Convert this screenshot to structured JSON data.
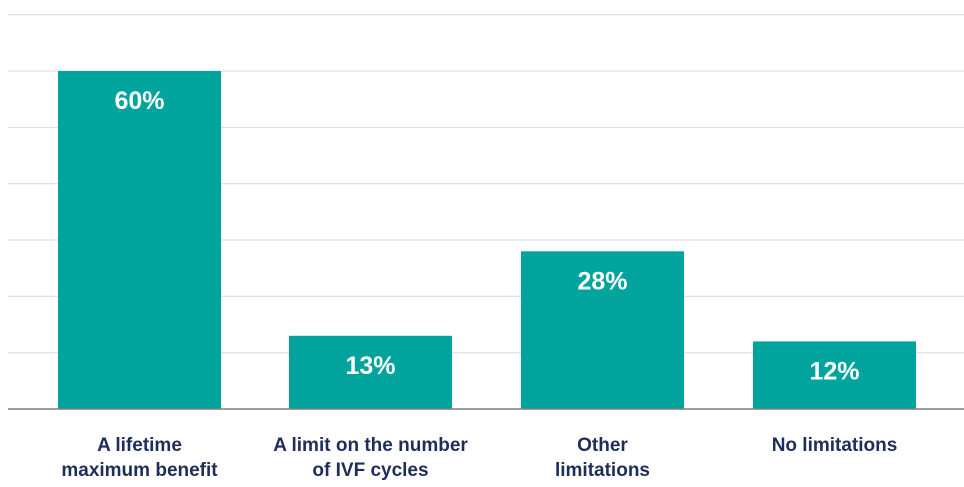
{
  "chart_data": {
    "type": "bar",
    "categories": [
      [
        "A lifetime",
        "maximum benefit"
      ],
      [
        "A limit on the number",
        "of IVF cycles"
      ],
      [
        "Other",
        "limitations"
      ],
      [
        "No limitations"
      ]
    ],
    "values": [
      60,
      13,
      28,
      12
    ],
    "value_labels": [
      "60%",
      "13%",
      "28%",
      "12%"
    ],
    "title": "",
    "xlabel": "",
    "ylabel": "",
    "ylim": [
      0,
      70
    ],
    "grid": true,
    "legend": "none",
    "colors": {
      "bar": "#00a49c",
      "label_text": "#ffffff",
      "category_text": "#1f2d5a",
      "grid": "#d9d9d9",
      "axis": "#7f7f7f"
    }
  }
}
